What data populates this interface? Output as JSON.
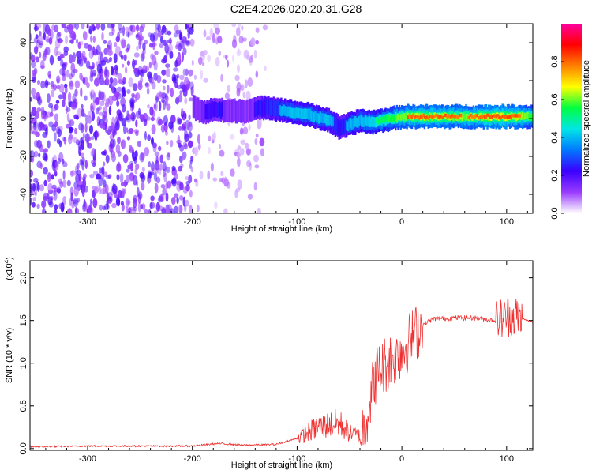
{
  "title": "C2E4.2026.020.20.31.G28",
  "chart_data": [
    {
      "type": "heatmap",
      "name": "spectrogram",
      "xlabel": "Height of straight line (km)",
      "ylabel": "Frequency (Hz)",
      "xlim": [
        -355,
        125
      ],
      "ylim": [
        -50,
        50
      ],
      "xticks": [
        -300,
        -200,
        -100,
        0,
        100
      ],
      "yticks": [
        -40,
        -20,
        0,
        20,
        40
      ],
      "xtick_labels": [
        "-300",
        "-200",
        "-100",
        "0",
        "100"
      ],
      "ytick_labels": [
        "-40",
        "-20",
        "0",
        "20",
        "40"
      ],
      "colorbar": {
        "label": "Normalized spectral amplitude",
        "range": [
          0,
          1
        ],
        "ticks": [
          0.0,
          0.2,
          0.4,
          0.6,
          0.8
        ],
        "tick_labels": [
          "0.0",
          "0.2",
          "0.4",
          "0.6",
          "0.8"
        ],
        "colors": [
          "#ffffff",
          "#9a3cff",
          "#3a00ff",
          "#0078ff",
          "#00e6e6",
          "#00ff40",
          "#ffff00",
          "#ff8000",
          "#ff0000",
          "#ff00a0"
        ]
      },
      "signal_trace": {
        "x": [
          -200,
          -190,
          -180,
          -170,
          -150,
          -130,
          -110,
          -90,
          -70,
          -60,
          -55,
          -50,
          -40,
          -30,
          -20,
          -10,
          0,
          20,
          40,
          60,
          80,
          100,
          110,
          125
        ],
        "y": [
          6,
          3,
          5,
          4,
          4,
          6,
          4,
          2,
          -1,
          -5,
          -4,
          -3,
          -1,
          -2,
          -1,
          0,
          1,
          1,
          1,
          1,
          1,
          1,
          1,
          1
        ],
        "peak_amplitude": [
          0.15,
          0.2,
          0.25,
          0.2,
          0.15,
          0.3,
          0.4,
          0.45,
          0.4,
          0.3,
          0.35,
          0.4,
          0.45,
          0.5,
          0.55,
          0.6,
          0.75,
          0.8,
          0.8,
          0.75,
          0.85,
          0.85,
          0.8,
          0.6
        ]
      },
      "noise_region_x": [
        -355,
        -130
      ]
    },
    {
      "type": "line",
      "name": "snr",
      "xlabel": "Height of straight line (km)",
      "ylabel": "SNR (10 * v/v)",
      "y_multiplier": "(x10",
      "y_multiplier_exp": "4",
      "y_multiplier_close": ")",
      "xlim": [
        -355,
        125
      ],
      "ylim": [
        -0.02,
        2.2
      ],
      "xticks": [
        -300,
        -200,
        -100,
        0,
        100
      ],
      "yticks": [
        0.0,
        0.5,
        1.0,
        1.5,
        2.0
      ],
      "xtick_labels": [
        "-300",
        "-200",
        "-100",
        "0",
        "100"
      ],
      "ytick_labels": [
        "0.0",
        "0.5",
        "1.0",
        "1.5",
        "2.0"
      ],
      "color": "#ee3030",
      "series": [
        {
          "name": "SNR",
          "x": [
            -355,
            -300,
            -250,
            -200,
            -175,
            -150,
            -120,
            -100,
            -80,
            -60,
            -50,
            -40,
            -35,
            -30,
            -25,
            -20,
            -15,
            -10,
            -5,
            0,
            10,
            20,
            30,
            50,
            70,
            90,
            100,
            110,
            115,
            125
          ],
          "y": [
            0.02,
            0.03,
            0.03,
            0.03,
            0.06,
            0.04,
            0.05,
            0.12,
            0.25,
            0.3,
            0.18,
            0.15,
            0.3,
            0.6,
            0.85,
            0.95,
            1.0,
            1.05,
            1.1,
            1.15,
            1.3,
            1.45,
            1.52,
            1.53,
            1.53,
            1.5,
            1.55,
            1.55,
            1.52,
            1.48
          ]
        }
      ]
    }
  ]
}
